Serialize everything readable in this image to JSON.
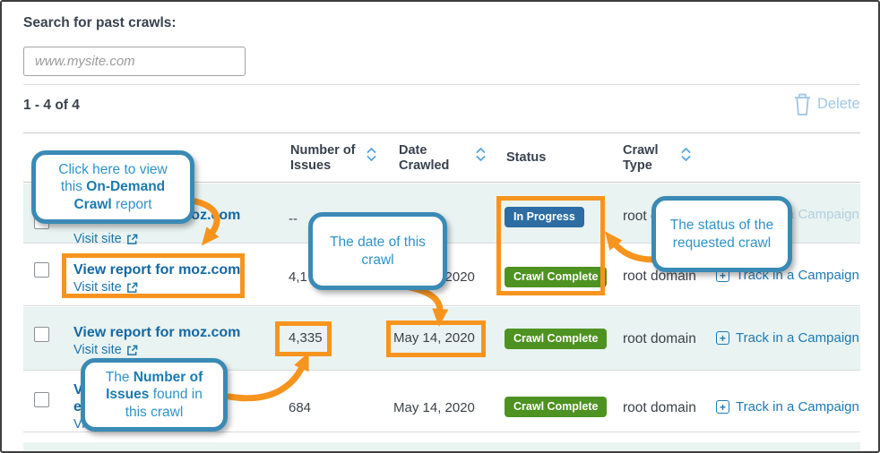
{
  "search": {
    "label": "Search for past crawls:",
    "placeholder": "www.mysite.com"
  },
  "toolbar": {
    "result_count": "1 - 4 of 4",
    "delete_label": "Delete",
    "delete_icon": "trash-icon"
  },
  "table": {
    "columns": [
      {
        "label": "Number of\nIssues",
        "sortable": true,
        "sort_icon": "sort-chevrons-icon"
      },
      {
        "label": "Date\nCrawled",
        "sortable": true,
        "sort_icon": "sort-chevrons-icon"
      },
      {
        "label": "Status",
        "sortable": false
      },
      {
        "label": "Crawl\nType",
        "sortable": true,
        "sort_icon": "sort-chevrons-icon"
      }
    ],
    "rows": [
      {
        "report_link": "View report for moz.com",
        "visit_link": "Visit site",
        "issues": "--",
        "date": "",
        "status": "In Progress",
        "crawl_type": "root domain",
        "action": "Track in a Campaign",
        "action_disabled": true,
        "highlighted": true
      },
      {
        "report_link": "View report for moz.com",
        "visit_link": "Visit site",
        "issues": "4,1",
        "date": "May 14, 2020",
        "status": "Crawl Complete",
        "crawl_type": "root domain",
        "action": "Track in a Campaign",
        "action_disabled": false,
        "highlighted": false
      },
      {
        "report_link": "View report for moz.com",
        "visit_link": "Visit site",
        "issues": "4,335",
        "date": "May 14, 2020",
        "status": "Crawl Complete",
        "crawl_type": "root domain",
        "action": "Track in a Campaign",
        "action_disabled": false,
        "highlighted": true
      },
      {
        "report_link": "View report for",
        "report_link_line2": "e",
        "visit_link": "Visit site",
        "issues": "684",
        "date": "May 14, 2020",
        "status": "Crawl Complete",
        "crawl_type": "root domain",
        "action": "Track in a Campaign",
        "action_disabled": false,
        "highlighted": false
      }
    ]
  },
  "colors": {
    "status_in_progress": "#2d6da3",
    "status_complete": "#4e9221",
    "annotation_orange": "#f7941e",
    "callout_border_blue": "#3a8ab5",
    "callout_text_blue": "#2e93c8",
    "link_blue": "#1568a3",
    "row_highlight_teal": "#e9f3f1",
    "delete_light_blue": "#a3c7e2"
  },
  "annotations": {
    "callouts": [
      {
        "id": "view-report-callout",
        "segments": [
          {
            "t": "Click here to view\nthis "
          },
          {
            "t": "On-Demand\nCrawl",
            "b": true
          },
          {
            "t": " report"
          }
        ]
      },
      {
        "id": "date-callout",
        "segments": [
          {
            "t": "The date of this\ncrawl"
          }
        ]
      },
      {
        "id": "status-callout",
        "segments": [
          {
            "t": "The status of the\nrequested crawl"
          }
        ]
      },
      {
        "id": "issues-callout",
        "segments": [
          {
            "t": "The "
          },
          {
            "t": "Number of\nIssues",
            "b": true
          },
          {
            "t": " found in\nthis crawl"
          }
        ]
      }
    ]
  }
}
